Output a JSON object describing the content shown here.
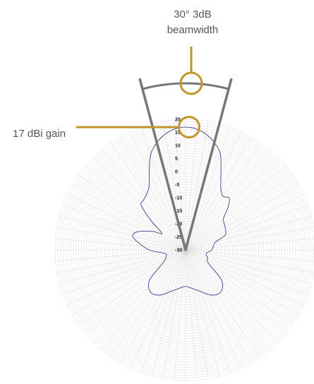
{
  "annotations": {
    "beamwidth_line1": "30° 3dB",
    "beamwidth_line2": "beamwidth",
    "gain": "17 dBi gain"
  },
  "colors": {
    "accent": "#c2962a",
    "wedge": "#777777",
    "pattern": "#3d3d8f",
    "grid": "#cccccc"
  },
  "chart_data": {
    "type": "polar",
    "title": "",
    "r_unit": "dBi",
    "r_range": [
      -30,
      20
    ],
    "r_ticks": [
      20,
      15,
      10,
      5,
      0,
      -5,
      -10,
      -15,
      -20,
      -25,
      -30
    ],
    "tick_labels": [
      "20",
      "15",
      "10",
      "5",
      "0",
      "-5",
      "-10",
      "-15",
      "-20",
      "-25",
      "-30"
    ],
    "beamwidth_deg": 30,
    "peak_gain_dbi": 17,
    "pattern": {
      "angle_deg": [
        0,
        5,
        10,
        15,
        20,
        25,
        30,
        35,
        40,
        45,
        50,
        55,
        60,
        65,
        70,
        75,
        80,
        90,
        100,
        110,
        120,
        130,
        140,
        150,
        160,
        170,
        180,
        190,
        200,
        210,
        220,
        230,
        240,
        250,
        260,
        270,
        280,
        285,
        290,
        295,
        300,
        305,
        310,
        315,
        320,
        325,
        330,
        335,
        340,
        345,
        350,
        355
      ],
      "gain_dbi": [
        17,
        16.5,
        15,
        12.5,
        9,
        2,
        -3,
        -5,
        -4,
        -7,
        -11,
        -12,
        -12.5,
        -13,
        -14,
        -18,
        -19,
        -20,
        -22,
        -21,
        -20,
        -12,
        -9,
        -10,
        -13,
        -15,
        -16,
        -15,
        -13,
        -10,
        -9,
        -12,
        -20,
        -22,
        -22,
        -16,
        -11,
        -9,
        -10,
        -13,
        -16,
        -19,
        -13,
        -6,
        -5,
        -4,
        -2,
        3,
        9,
        12.5,
        15,
        16.5
      ]
    }
  }
}
